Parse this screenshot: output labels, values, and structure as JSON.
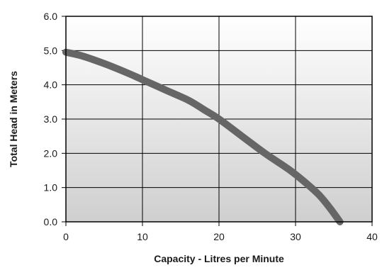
{
  "chart_data": {
    "type": "line",
    "title": "",
    "xlabel": "Capacity - Litres per Minute",
    "ylabel": "Total Head in Meters",
    "xlim": [
      0,
      40
    ],
    "ylim": [
      0,
      6
    ],
    "x_ticks": [
      0,
      10,
      20,
      30,
      40
    ],
    "y_ticks": [
      0,
      1,
      2,
      3,
      4,
      5,
      6
    ],
    "x_tick_labels": [
      "0",
      "10",
      "20",
      "30",
      "40"
    ],
    "y_tick_labels": [
      "0.0",
      "1.0",
      "2.0",
      "3.0",
      "4.0",
      "5.0",
      "6.0"
    ],
    "grid": true,
    "legend": "none",
    "series": [
      {
        "x": [
          0,
          2,
          5,
          8,
          10,
          13,
          16,
          18,
          20,
          23,
          26,
          29,
          31,
          33,
          34.5,
          35.8
        ],
        "y": [
          4.95,
          4.85,
          4.62,
          4.35,
          4.15,
          3.85,
          3.55,
          3.28,
          3.0,
          2.5,
          2.0,
          1.55,
          1.2,
          0.8,
          0.4,
          0.0
        ]
      }
    ],
    "colors": {
      "line": "#666666",
      "grid": "#000000",
      "plot_bg_top": "#ffffff",
      "plot_bg_bottom": "#cfcfcf"
    }
  }
}
